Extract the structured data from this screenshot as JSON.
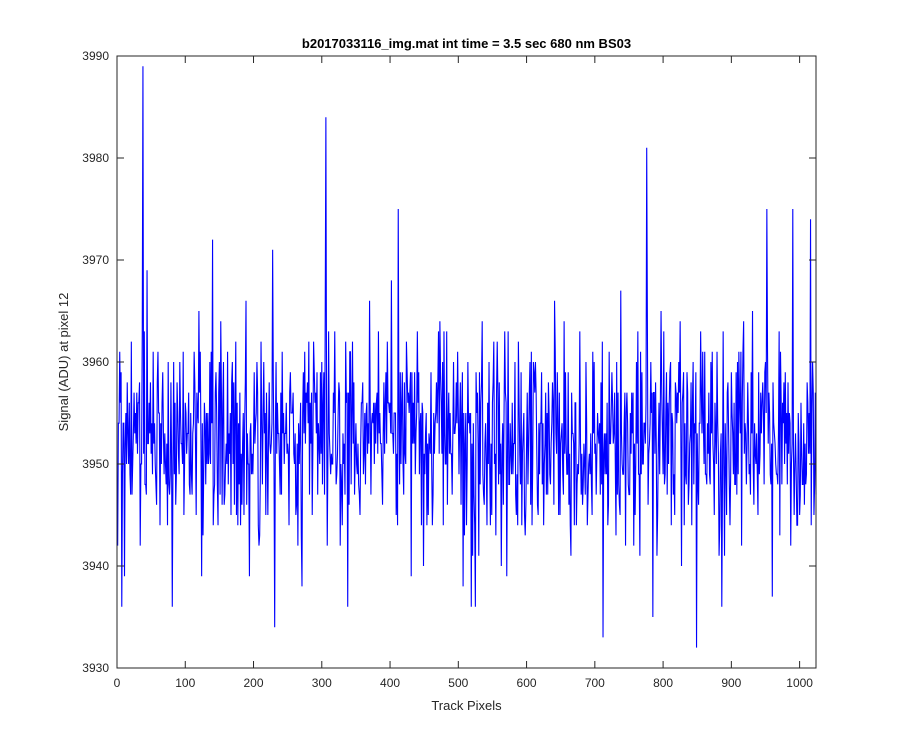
{
  "chart_data": {
    "type": "line",
    "title": "b2017033116_img.mat int time = 3.5 sec  680 nm BS03",
    "xlabel": "Track Pixels",
    "ylabel": "Signal (ADU) at pixel 12",
    "xlim": [
      0,
      1024
    ],
    "ylim": [
      3930,
      3990
    ],
    "xticks": [
      0,
      100,
      200,
      300,
      400,
      500,
      600,
      700,
      800,
      900,
      1000
    ],
    "yticks": [
      3930,
      3940,
      3950,
      3960,
      3970,
      3980,
      3990
    ],
    "grid": false,
    "line_color": "#0000ff",
    "series": [
      {
        "name": "",
        "x_start": 1,
        "x_step": 1,
        "n_points": 1024,
        "typical_range": [
          3940,
          3968
        ],
        "mean": 3953,
        "peaks": [
          {
            "x": 38,
            "y": 3989
          },
          {
            "x": 306,
            "y": 3984
          },
          {
            "x": 776,
            "y": 3981
          },
          {
            "x": 412,
            "y": 3975
          },
          {
            "x": 952,
            "y": 3975
          },
          {
            "x": 990,
            "y": 3975
          },
          {
            "x": 1016,
            "y": 3974
          },
          {
            "x": 140,
            "y": 3972
          },
          {
            "x": 228,
            "y": 3971
          }
        ],
        "troughs": [
          {
            "x": 231,
            "y": 3934
          },
          {
            "x": 849,
            "y": 3932
          },
          {
            "x": 712,
            "y": 3933
          },
          {
            "x": 7,
            "y": 3936
          },
          {
            "x": 81,
            "y": 3936
          },
          {
            "x": 338,
            "y": 3936
          },
          {
            "x": 519,
            "y": 3936
          },
          {
            "x": 525,
            "y": 3936
          },
          {
            "x": 886,
            "y": 3936
          },
          {
            "x": 960,
            "y": 3937
          },
          {
            "x": 785,
            "y": 3935
          }
        ]
      }
    ]
  }
}
